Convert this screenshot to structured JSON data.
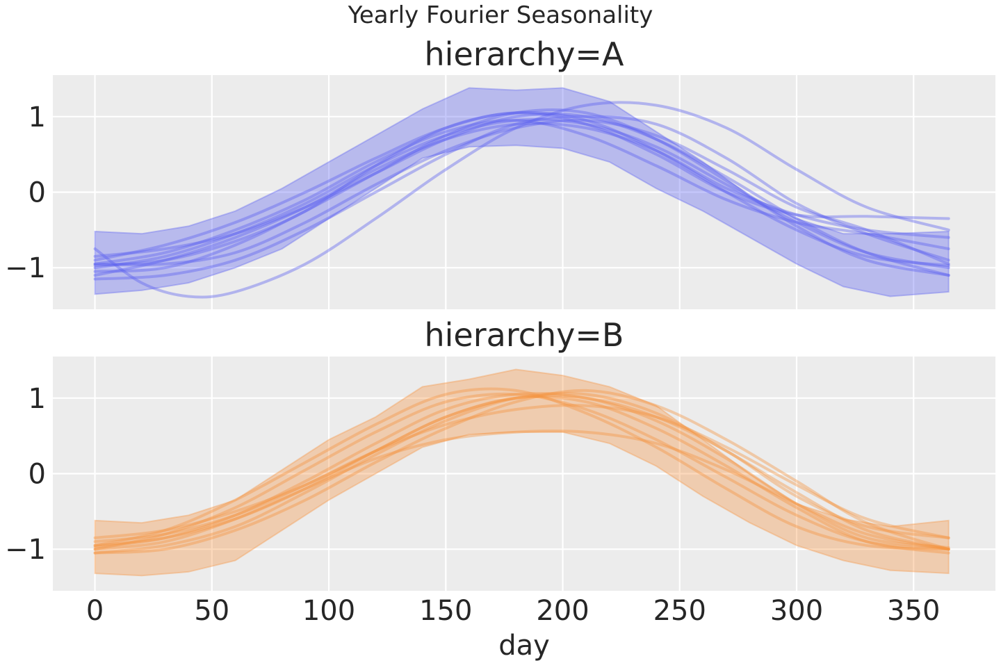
{
  "chart_data": {
    "type": "line",
    "title": "Yearly Fourier Seasonality",
    "xlabel": "day",
    "ylabel": "",
    "xlim": [
      -18,
      385
    ],
    "ylim": [
      -1.55,
      1.55
    ],
    "x_ticks": [
      0,
      50,
      100,
      150,
      200,
      250,
      300,
      350
    ],
    "x_tick_labels": [
      "0",
      "50",
      "100",
      "150",
      "200",
      "250",
      "300",
      "350"
    ],
    "y_ticks": [
      1,
      0,
      -1
    ],
    "y_tick_labels": [
      "1",
      "0",
      "−1"
    ],
    "grid": true,
    "background": "#ececec",
    "panels": [
      {
        "title": "hierarchy=A",
        "color": "#5a5ff0",
        "band": {
          "x": [
            0,
            20,
            40,
            60,
            80,
            100,
            120,
            140,
            160,
            180,
            200,
            220,
            240,
            260,
            280,
            300,
            320,
            340,
            365
          ],
          "lower": [
            -1.35,
            -1.3,
            -1.2,
            -1.0,
            -0.75,
            -0.35,
            0.05,
            0.45,
            0.6,
            0.62,
            0.58,
            0.4,
            0.05,
            -0.25,
            -0.6,
            -0.95,
            -1.25,
            -1.38,
            -1.32
          ],
          "upper": [
            -0.52,
            -0.55,
            -0.45,
            -0.25,
            0.05,
            0.4,
            0.75,
            1.1,
            1.38,
            1.35,
            1.38,
            1.2,
            0.8,
            0.4,
            -0.05,
            -0.35,
            -0.55,
            -0.55,
            -0.52
          ]
        },
        "lines": [
          {
            "x": [
              0,
              30,
              60,
              90,
              120,
              150,
              180,
              210,
              240,
              270,
              300,
              330,
              365
            ],
            "y": [
              -0.97,
              -0.9,
              -0.65,
              -0.25,
              0.35,
              0.85,
              1.05,
              0.95,
              0.55,
              0.0,
              -0.5,
              -0.85,
              -0.97
            ]
          },
          {
            "x": [
              0,
              30,
              60,
              90,
              120,
              150,
              180,
              210,
              240,
              270,
              300,
              330,
              365
            ],
            "y": [
              -1.0,
              -0.85,
              -0.55,
              -0.15,
              0.35,
              0.75,
              0.95,
              0.9,
              0.6,
              0.1,
              -0.4,
              -0.8,
              -1.0
            ]
          },
          {
            "x": [
              0,
              30,
              60,
              90,
              120,
              150,
              180,
              210,
              240,
              270,
              300,
              330,
              365
            ],
            "y": [
              -0.85,
              -0.75,
              -0.55,
              -0.2,
              0.25,
              0.7,
              1.0,
              1.0,
              0.7,
              0.2,
              -0.35,
              -0.8,
              -1.1
            ]
          },
          {
            "x": [
              0,
              30,
              60,
              90,
              120,
              150,
              180,
              210,
              240,
              270,
              300,
              330,
              365
            ],
            "y": [
              -1.05,
              -1.0,
              -0.7,
              -0.25,
              0.25,
              0.75,
              1.05,
              1.05,
              0.7,
              0.15,
              -0.45,
              -0.9,
              -1.1
            ]
          },
          {
            "x": [
              0,
              30,
              60,
              90,
              120,
              150,
              180,
              210,
              240,
              270,
              300,
              330,
              365
            ],
            "y": [
              -0.95,
              -0.8,
              -0.5,
              -0.1,
              0.4,
              0.8,
              0.95,
              0.75,
              0.35,
              -0.1,
              -0.4,
              -0.55,
              -0.75
            ]
          },
          {
            "x": [
              0,
              30,
              60,
              90,
              120,
              150,
              180,
              210,
              240,
              270,
              300,
              330,
              365
            ],
            "y": [
              -1.1,
              -0.9,
              -0.6,
              -0.2,
              0.3,
              0.7,
              0.9,
              0.85,
              0.55,
              0.05,
              -0.3,
              -0.5,
              -0.6
            ]
          },
          {
            "x": [
              0,
              30,
              60,
              90,
              120,
              150,
              180,
              210,
              240,
              270,
              300,
              330,
              365
            ],
            "y": [
              -0.95,
              -0.95,
              -0.8,
              -0.4,
              0.1,
              0.55,
              0.85,
              0.95,
              0.75,
              0.3,
              -0.2,
              -0.5,
              -0.95
            ]
          },
          {
            "x": [
              0,
              30,
              60,
              90,
              120,
              150,
              180,
              210,
              240,
              270,
              300,
              330,
              365
            ],
            "y": [
              -1.15,
              -1.1,
              -0.9,
              -0.5,
              0.0,
              0.5,
              0.9,
              1.0,
              0.9,
              0.45,
              -0.15,
              -0.55,
              -0.9
            ]
          },
          {
            "x": [
              0,
              20,
              40,
              60,
              90,
              120,
              150,
              180,
              210,
              240,
              270,
              300,
              330,
              365
            ],
            "y": [
              -0.75,
              -1.2,
              -1.38,
              -1.32,
              -0.95,
              -0.35,
              0.3,
              0.85,
              1.15,
              1.15,
              0.85,
              0.3,
              -0.2,
              -0.5
            ]
          },
          {
            "x": [
              0,
              30,
              60,
              90,
              120,
              150,
              180,
              210,
              240,
              270,
              300,
              330,
              365
            ],
            "y": [
              -0.9,
              -0.7,
              -0.4,
              0.0,
              0.45,
              0.85,
              1.05,
              0.9,
              0.5,
              0.0,
              -0.3,
              -0.32,
              -0.35
            ]
          }
        ]
      },
      {
        "title": "hierarchy=B",
        "color": "#f5933f",
        "band": {
          "x": [
            0,
            20,
            40,
            60,
            80,
            100,
            120,
            140,
            160,
            180,
            200,
            220,
            240,
            260,
            280,
            300,
            320,
            340,
            365
          ],
          "lower": [
            -1.32,
            -1.35,
            -1.3,
            -1.15,
            -0.75,
            -0.35,
            0.0,
            0.35,
            0.52,
            0.55,
            0.55,
            0.4,
            0.1,
            -0.3,
            -0.65,
            -0.95,
            -1.15,
            -1.28,
            -1.32
          ],
          "upper": [
            -0.62,
            -0.65,
            -0.55,
            -0.35,
            0.05,
            0.45,
            0.75,
            1.15,
            1.25,
            1.38,
            1.3,
            1.15,
            0.9,
            0.45,
            0.0,
            -0.4,
            -0.6,
            -0.7,
            -0.62
          ]
        },
        "lines": [
          {
            "x": [
              0,
              30,
              60,
              90,
              120,
              150,
              180,
              210,
              240,
              270,
              300,
              330,
              365
            ],
            "y": [
              -0.97,
              -0.85,
              -0.55,
              -0.1,
              0.4,
              0.85,
              1.05,
              1.0,
              0.7,
              0.2,
              -0.4,
              -0.85,
              -0.98
            ]
          },
          {
            "x": [
              0,
              30,
              60,
              90,
              120,
              150,
              180,
              210,
              240,
              270,
              300,
              330,
              365
            ],
            "y": [
              -1.0,
              -0.8,
              -0.45,
              0.05,
              0.55,
              0.95,
              1.05,
              0.85,
              0.45,
              -0.05,
              -0.55,
              -0.9,
              -1.0
            ]
          },
          {
            "x": [
              0,
              30,
              60,
              90,
              120,
              150,
              180,
              210,
              240,
              270,
              300,
              330,
              365
            ],
            "y": [
              -0.95,
              -0.75,
              -0.35,
              0.15,
              0.65,
              1.05,
              1.1,
              0.8,
              0.35,
              -0.2,
              -0.7,
              -0.95,
              -1.0
            ]
          },
          {
            "x": [
              0,
              30,
              60,
              90,
              120,
              150,
              180,
              210,
              240,
              270,
              300,
              330,
              365
            ],
            "y": [
              -1.05,
              -0.95,
              -0.7,
              -0.25,
              0.25,
              0.7,
              1.0,
              1.05,
              0.8,
              0.3,
              -0.25,
              -0.75,
              -1.0
            ]
          },
          {
            "x": [
              0,
              30,
              60,
              90,
              120,
              150,
              180,
              210,
              240,
              270,
              300,
              330,
              365
            ],
            "y": [
              -0.9,
              -0.8,
              -0.55,
              -0.15,
              0.3,
              0.65,
              0.85,
              0.9,
              0.75,
              0.35,
              -0.15,
              -0.6,
              -0.85
            ]
          },
          {
            "x": [
              0,
              30,
              60,
              90,
              120,
              150,
              180,
              210,
              240,
              270,
              300,
              330,
              365
            ],
            "y": [
              -1.0,
              -0.9,
              -0.6,
              -0.2,
              0.2,
              0.45,
              0.55,
              0.55,
              0.4,
              0.05,
              -0.4,
              -0.8,
              -1.0
            ]
          },
          {
            "x": [
              0,
              30,
              60,
              90,
              120,
              150,
              180,
              210,
              240,
              270,
              300,
              330,
              365
            ],
            "y": [
              -0.85,
              -0.75,
              -0.5,
              -0.15,
              0.3,
              0.75,
              1.0,
              1.0,
              0.75,
              0.3,
              -0.3,
              -0.7,
              -0.85
            ]
          },
          {
            "x": [
              0,
              30,
              60,
              90,
              120,
              150,
              180,
              210,
              240,
              270,
              300,
              330,
              365
            ],
            "y": [
              -1.05,
              -1.0,
              -0.75,
              -0.35,
              0.15,
              0.6,
              0.95,
              1.1,
              0.9,
              0.45,
              -0.1,
              -0.65,
              -1.0
            ]
          },
          {
            "x": [
              0,
              30,
              60,
              90,
              120,
              150,
              180,
              210,
              240,
              270,
              300,
              330,
              365
            ],
            "y": [
              -0.95,
              -0.85,
              -0.6,
              -0.2,
              0.3,
              0.75,
              1.0,
              0.95,
              0.6,
              0.1,
              -0.45,
              -0.9,
              -1.05
            ]
          }
        ]
      }
    ]
  }
}
